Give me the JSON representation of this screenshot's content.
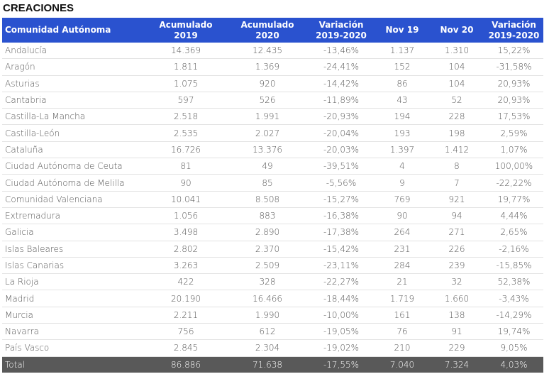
{
  "header": {
    "title": "CREACIONES"
  },
  "table": {
    "columns": [
      "Comunidad Autónoma",
      "Acumulado 2019",
      "Acumulado 2020",
      "Variación 2019-2020",
      "Nov 19",
      "Nov 20",
      "Variación 2019-2020"
    ],
    "rows": [
      [
        "Andalucía",
        "14.369",
        "12.435",
        "-13,46%",
        "1.137",
        "1.310",
        "15,22%"
      ],
      [
        "Aragón",
        "1.811",
        "1.369",
        "-24,41%",
        "152",
        "104",
        "-31,58%"
      ],
      [
        "Asturias",
        "1.075",
        "920",
        "-14,42%",
        "86",
        "104",
        "20,93%"
      ],
      [
        "Cantabria",
        "597",
        "526",
        "-11,89%",
        "43",
        "52",
        "20,93%"
      ],
      [
        "Castilla-La Mancha",
        "2.518",
        "1.991",
        "-20,93%",
        "194",
        "228",
        "17,53%"
      ],
      [
        "Castilla-León",
        "2.535",
        "2.027",
        "-20,04%",
        "193",
        "198",
        "2,59%"
      ],
      [
        "Cataluña",
        "16.726",
        "13.376",
        "-20,03%",
        "1.397",
        "1.412",
        "1,07%"
      ],
      [
        "Ciudad Autónoma de Ceuta",
        "81",
        "49",
        "-39,51%",
        "4",
        "8",
        "100,00%"
      ],
      [
        "Ciudad Autónoma de Melilla",
        "90",
        "85",
        "-5,56%",
        "9",
        "7",
        "-22,22%"
      ],
      [
        "Comunidad Valenciana",
        "10.041",
        "8.508",
        "-15,27%",
        "769",
        "921",
        "19,77%"
      ],
      [
        "Extremadura",
        "1.056",
        "883",
        "-16,38%",
        "90",
        "94",
        "4,44%"
      ],
      [
        "Galicia",
        "3.498",
        "2.890",
        "-17,38%",
        "264",
        "271",
        "2,65%"
      ],
      [
        "Islas Baleares",
        "2.802",
        "2.370",
        "-15,42%",
        "231",
        "226",
        "-2,16%"
      ],
      [
        "Islas Canarias",
        "3.263",
        "2.509",
        "-23,11%",
        "284",
        "239",
        "-15,85%"
      ],
      [
        "La Rioja",
        "422",
        "328",
        "-22,27%",
        "21",
        "32",
        "52,38%"
      ],
      [
        "Madrid",
        "20.190",
        "16.466",
        "-18,44%",
        "1.719",
        "1.660",
        "-3,43%"
      ],
      [
        "Murcia",
        "2.211",
        "1.990",
        "-10,00%",
        "161",
        "138",
        "-14,29%"
      ],
      [
        "Navarra",
        "756",
        "612",
        "-19,05%",
        "76",
        "91",
        "19,74%"
      ],
      [
        "País Vasco",
        "2.845",
        "2.304",
        "-19,02%",
        "210",
        "229",
        "9,05%"
      ]
    ],
    "total": [
      "Total",
      "86.886",
      "71.638",
      "-17,55%",
      "7.040",
      "7.324",
      "4,03%"
    ]
  }
}
